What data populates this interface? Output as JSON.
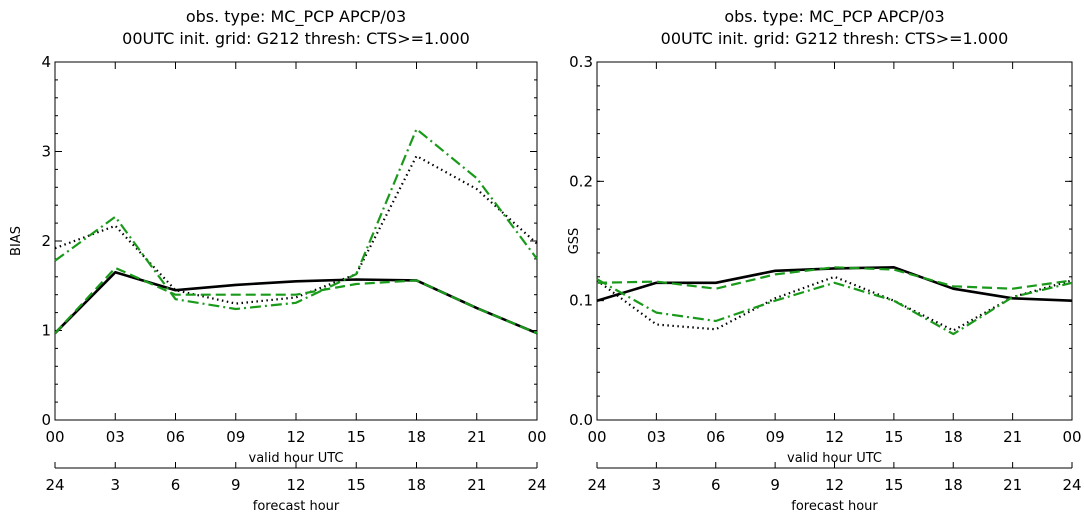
{
  "chart_data": [
    {
      "type": "line",
      "title": "obs. type: MC_PCP   APCP/03",
      "subtitle": "00UTC init.   grid: G212   thresh: CTS>=1.000",
      "ylabel": "BIAS",
      "xlabel": "valid hour UTC",
      "x2label": "forecast hour",
      "x_ticks": [
        "00",
        "03",
        "06",
        "09",
        "12",
        "15",
        "18",
        "21",
        "00"
      ],
      "x2_ticks": [
        "24",
        "3",
        "6",
        "9",
        "12",
        "15",
        "18",
        "21",
        "24"
      ],
      "y_ticks": [
        "0",
        "1",
        "2",
        "3",
        "4"
      ],
      "ylim": [
        0,
        4
      ],
      "grid": false,
      "series": [
        {
          "color": "#000000",
          "dash": "solid",
          "values": [
            0.97,
            1.65,
            1.45,
            1.51,
            1.55,
            1.57,
            1.56,
            1.25,
            0.97
          ]
        },
        {
          "color": "#000000",
          "dash": "dotted",
          "values": [
            1.92,
            2.17,
            1.45,
            1.3,
            1.37,
            1.63,
            2.95,
            2.58,
            1.97
          ]
        },
        {
          "color": "#1a9a1a",
          "dash": "dashed",
          "values": [
            0.97,
            1.7,
            1.4,
            1.4,
            1.4,
            1.52,
            1.56,
            1.25,
            0.97
          ]
        },
        {
          "color": "#1a9a1a",
          "dash": "dashdot",
          "values": [
            1.78,
            2.27,
            1.35,
            1.24,
            1.31,
            1.63,
            3.25,
            2.7,
            1.8
          ]
        }
      ]
    },
    {
      "type": "line",
      "title": "obs. type: MC_PCP   APCP/03",
      "subtitle": "00UTC init.   grid: G212   thresh: CTS>=1.000",
      "ylabel": "GSS",
      "xlabel": "valid hour UTC",
      "x2label": "forecast hour",
      "x_ticks": [
        "00",
        "03",
        "06",
        "09",
        "12",
        "15",
        "18",
        "21",
        "00"
      ],
      "x2_ticks": [
        "24",
        "3",
        "6",
        "9",
        "12",
        "15",
        "18",
        "21",
        "24"
      ],
      "y_ticks": [
        "0.0",
        "0.1",
        "0.2",
        "0.3"
      ],
      "ylim": [
        0,
        0.3
      ],
      "grid": false,
      "series": [
        {
          "color": "#000000",
          "dash": "solid",
          "values": [
            0.1,
            0.115,
            0.115,
            0.125,
            0.127,
            0.128,
            0.11,
            0.102,
            0.1
          ]
        },
        {
          "color": "#000000",
          "dash": "dotted",
          "values": [
            0.117,
            0.08,
            0.076,
            0.102,
            0.12,
            0.1,
            0.075,
            0.103,
            0.117
          ]
        },
        {
          "color": "#1a9a1a",
          "dash": "dashed",
          "values": [
            0.115,
            0.116,
            0.11,
            0.122,
            0.128,
            0.126,
            0.112,
            0.11,
            0.117
          ]
        },
        {
          "color": "#1a9a1a",
          "dash": "dashdot",
          "values": [
            0.118,
            0.09,
            0.083,
            0.1,
            0.115,
            0.1,
            0.072,
            0.103,
            0.115
          ]
        }
      ]
    }
  ]
}
